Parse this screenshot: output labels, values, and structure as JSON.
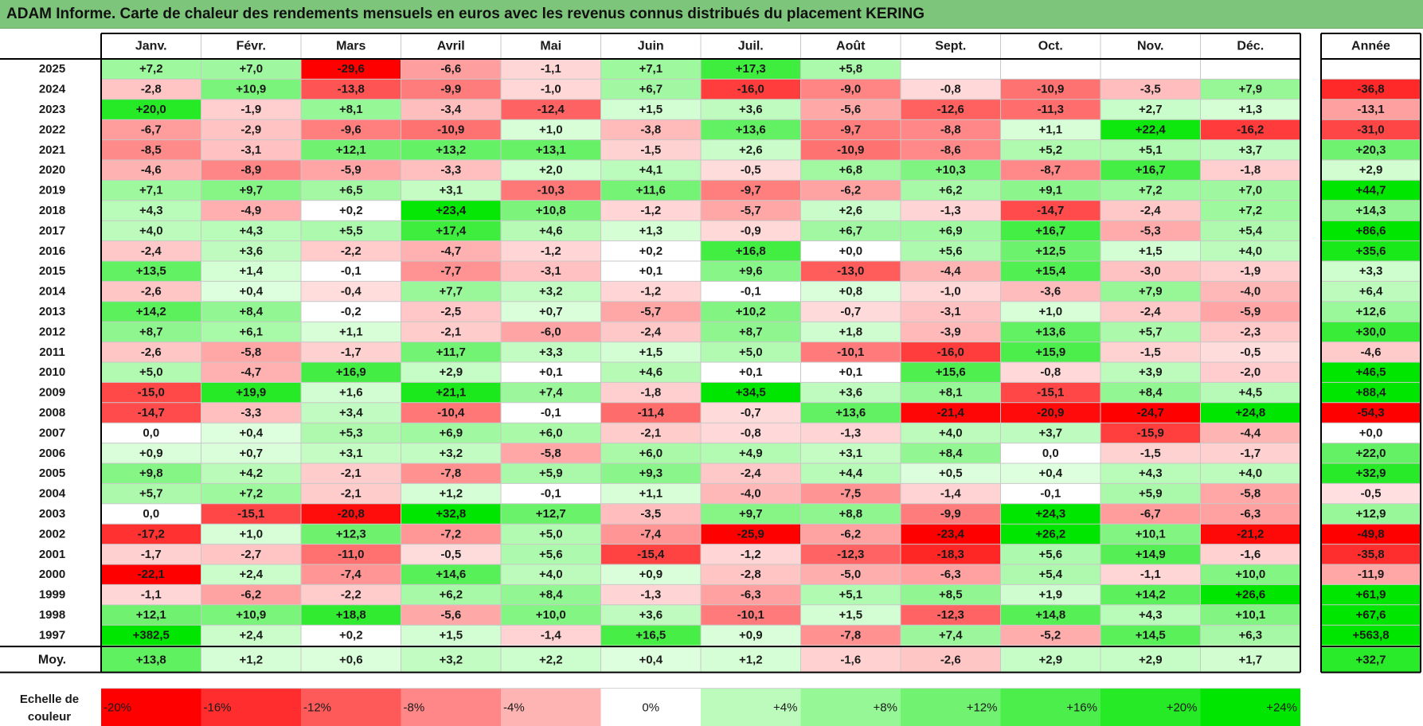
{
  "title": "ADAM Informe. Carte de chaleur des rendements mensuels en euros avec les revenus connus distribués du placement KERING",
  "chart_data": {
    "type": "heatmap",
    "columns": [
      "Janv.",
      "Févr.",
      "Mars",
      "Avril",
      "Mai",
      "Juin",
      "Juil.",
      "Août",
      "Sept.",
      "Oct.",
      "Nov.",
      "Déc."
    ],
    "year_header": "Année",
    "rows": [
      {
        "year": "2025",
        "values": [
          "+7,2",
          "+7,0",
          "-29,6",
          "-6,6",
          "-1,1",
          "+7,1",
          "+17,3",
          "+5,8",
          null,
          null,
          null,
          null
        ],
        "annual": null
      },
      {
        "year": "2024",
        "values": [
          "-2,8",
          "+10,9",
          "-13,8",
          "-9,9",
          "-1,0",
          "+6,7",
          "-16,0",
          "-9,0",
          "-0,8",
          "-10,9",
          "-3,5",
          "+7,9"
        ],
        "annual": "-36,8"
      },
      {
        "year": "2023",
        "values": [
          "+20,0",
          "-1,9",
          "+8,1",
          "-3,4",
          "-12,4",
          "+1,5",
          "+3,6",
          "-5,6",
          "-12,6",
          "-11,3",
          "+2,7",
          "+1,3"
        ],
        "annual": "-13,1"
      },
      {
        "year": "2022",
        "values": [
          "-6,7",
          "-2,9",
          "-9,6",
          "-10,9",
          "+1,0",
          "-3,8",
          "+13,6",
          "-9,7",
          "-8,8",
          "+1,1",
          "+22,4",
          "-16,2"
        ],
        "annual": "-31,0"
      },
      {
        "year": "2021",
        "values": [
          "-8,5",
          "-3,1",
          "+12,1",
          "+13,2",
          "+13,1",
          "-1,5",
          "+2,6",
          "-10,9",
          "-8,6",
          "+5,2",
          "+5,1",
          "+3,7"
        ],
        "annual": "+20,3"
      },
      {
        "year": "2020",
        "values": [
          "-4,6",
          "-8,9",
          "-5,9",
          "-3,3",
          "+2,0",
          "+4,1",
          "-0,5",
          "+6,8",
          "+10,3",
          "-8,7",
          "+16,7",
          "-1,8"
        ],
        "annual": "+2,9"
      },
      {
        "year": "2019",
        "values": [
          "+7,1",
          "+9,7",
          "+6,5",
          "+3,1",
          "-10,3",
          "+11,6",
          "-9,7",
          "-6,2",
          "+6,2",
          "+9,1",
          "+7,2",
          "+7,0"
        ],
        "annual": "+44,7"
      },
      {
        "year": "2018",
        "values": [
          "+4,3",
          "-4,9",
          "+0,2",
          "+23,4",
          "+10,8",
          "-1,2",
          "-5,7",
          "+2,6",
          "-1,3",
          "-14,7",
          "-2,4",
          "+7,2"
        ],
        "annual": "+14,3"
      },
      {
        "year": "2017",
        "values": [
          "+4,0",
          "+4,3",
          "+5,5",
          "+17,4",
          "+4,6",
          "+1,3",
          "-0,9",
          "+6,7",
          "+6,9",
          "+16,7",
          "-5,3",
          "+5,4"
        ],
        "annual": "+86,6"
      },
      {
        "year": "2016",
        "values": [
          "-2,4",
          "+3,6",
          "-2,2",
          "-4,7",
          "-1,2",
          "+0,2",
          "+16,8",
          "+0,0",
          "+5,6",
          "+12,5",
          "+1,5",
          "+4,0"
        ],
        "annual": "+35,6"
      },
      {
        "year": "2015",
        "values": [
          "+13,5",
          "+1,4",
          "-0,1",
          "-7,7",
          "-3,1",
          "+0,1",
          "+9,6",
          "-13,0",
          "-4,4",
          "+15,4",
          "-3,0",
          "-1,9"
        ],
        "annual": "+3,3"
      },
      {
        "year": "2014",
        "values": [
          "-2,6",
          "+0,4",
          "-0,4",
          "+7,7",
          "+3,2",
          "-1,2",
          "-0,1",
          "+0,8",
          "-1,0",
          "-3,6",
          "+7,9",
          "-4,0"
        ],
        "annual": "+6,4"
      },
      {
        "year": "2013",
        "values": [
          "+14,2",
          "+8,4",
          "-0,2",
          "-2,5",
          "+0,7",
          "-5,7",
          "+10,2",
          "-0,7",
          "-3,1",
          "+1,0",
          "-2,4",
          "-5,9"
        ],
        "annual": "+12,6"
      },
      {
        "year": "2012",
        "values": [
          "+8,7",
          "+6,1",
          "+1,1",
          "-2,1",
          "-6,0",
          "-2,4",
          "+8,7",
          "+1,8",
          "-3,9",
          "+13,6",
          "+5,7",
          "-2,3"
        ],
        "annual": "+30,0"
      },
      {
        "year": "2011",
        "values": [
          "-2,6",
          "-5,8",
          "-1,7",
          "+11,7",
          "+3,3",
          "+1,5",
          "+5,0",
          "-10,1",
          "-16,0",
          "+15,9",
          "-1,5",
          "-0,5"
        ],
        "annual": "-4,6"
      },
      {
        "year": "2010",
        "values": [
          "+5,0",
          "-4,7",
          "+16,9",
          "+2,9",
          "+0,1",
          "+4,6",
          "+0,1",
          "+0,1",
          "+15,6",
          "-0,8",
          "+3,9",
          "-2,0"
        ],
        "annual": "+46,5"
      },
      {
        "year": "2009",
        "values": [
          "-15,0",
          "+19,9",
          "+1,6",
          "+21,1",
          "+7,4",
          "-1,8",
          "+34,5",
          "+3,6",
          "+8,1",
          "-15,1",
          "+8,4",
          "+4,5"
        ],
        "annual": "+88,4"
      },
      {
        "year": "2008",
        "values": [
          "-14,7",
          "-3,3",
          "+3,4",
          "-10,4",
          "-0,1",
          "-11,4",
          "-0,7",
          "+13,6",
          "-21,4",
          "-20,9",
          "-24,7",
          "+24,8"
        ],
        "annual": "-54,3"
      },
      {
        "year": "2007",
        "values": [
          "0,0",
          "+0,4",
          "+5,3",
          "+6,9",
          "+6,0",
          "-2,1",
          "-0,8",
          "-1,3",
          "+4,0",
          "+3,7",
          "-15,9",
          "-4,4"
        ],
        "annual": "+0,0"
      },
      {
        "year": "2006",
        "values": [
          "+0,9",
          "+0,7",
          "+3,1",
          "+3,2",
          "-5,8",
          "+6,0",
          "+4,9",
          "+3,1",
          "+8,4",
          "0,0",
          "-1,5",
          "-1,7"
        ],
        "annual": "+22,0"
      },
      {
        "year": "2005",
        "values": [
          "+9,8",
          "+4,2",
          "-2,1",
          "-7,8",
          "+5,9",
          "+9,3",
          "-2,4",
          "+4,4",
          "+0,5",
          "+0,4",
          "+4,3",
          "+4,0"
        ],
        "annual": "+32,9"
      },
      {
        "year": "2004",
        "values": [
          "+5,7",
          "+7,2",
          "-2,1",
          "+1,2",
          "-0,1",
          "+1,1",
          "-4,0",
          "-7,5",
          "-1,4",
          "-0,1",
          "+5,9",
          "-5,8"
        ],
        "annual": "-0,5"
      },
      {
        "year": "2003",
        "values": [
          "0,0",
          "-15,1",
          "-20,8",
          "+32,8",
          "+12,7",
          "-3,5",
          "+9,7",
          "+8,8",
          "-9,9",
          "+24,3",
          "-6,7",
          "-6,3"
        ],
        "annual": "+12,9"
      },
      {
        "year": "2002",
        "values": [
          "-17,2",
          "+1,0",
          "+12,3",
          "-7,2",
          "+5,0",
          "-7,4",
          "-25,9",
          "-6,2",
          "-23,4",
          "+26,2",
          "+10,1",
          "-21,2"
        ],
        "annual": "-49,8"
      },
      {
        "year": "2001",
        "values": [
          "-1,7",
          "-2,7",
          "-11,0",
          "-0,5",
          "+5,6",
          "-15,4",
          "-1,2",
          "-12,3",
          "-18,3",
          "+5,6",
          "+14,9",
          "-1,6"
        ],
        "annual": "-35,8"
      },
      {
        "year": "2000",
        "values": [
          "-22,1",
          "+2,4",
          "-7,4",
          "+14,6",
          "+4,0",
          "+0,9",
          "-2,8",
          "-5,0",
          "-6,3",
          "+5,4",
          "-1,1",
          "+10,0"
        ],
        "annual": "-11,9"
      },
      {
        "year": "1999",
        "values": [
          "-1,1",
          "-6,2",
          "-2,2",
          "+6,2",
          "+8,4",
          "-1,3",
          "-6,3",
          "+5,1",
          "+8,5",
          "+1,9",
          "+14,2",
          "+26,6"
        ],
        "annual": "+61,9"
      },
      {
        "year": "1998",
        "values": [
          "+12,1",
          "+10,9",
          "+18,8",
          "-5,6",
          "+10,0",
          "+3,6",
          "-10,1",
          "+1,5",
          "-12,3",
          "+14,8",
          "+4,3",
          "+10,1"
        ],
        "annual": "+67,6"
      },
      {
        "year": "1997",
        "values": [
          "+382,5",
          "+2,4",
          "+0,2",
          "+1,5",
          "-1,4",
          "+16,5",
          "+0,9",
          "-7,8",
          "+7,4",
          "-5,2",
          "+14,5",
          "+6,3"
        ],
        "annual": "+563,8"
      }
    ],
    "average": {
      "label": "Moy.",
      "values": [
        "+13,8",
        "+1,2",
        "+0,6",
        "+3,2",
        "+2,2",
        "+0,4",
        "+1,2",
        "-1,6",
        "-2,6",
        "+2,9",
        "+2,9",
        "+1,7"
      ],
      "annual": "+32,7"
    },
    "scale": {
      "label_line1": "Echelle de",
      "label_line2": "couleur",
      "stops": [
        "-20%",
        "-16%",
        "-12%",
        "-8%",
        "-4%",
        "0%",
        "+4%",
        "+8%",
        "+12%",
        "+16%",
        "+20%",
        "+24%"
      ],
      "stop_values": [
        -20,
        -16,
        -12,
        -8,
        -4,
        0,
        4,
        8,
        12,
        16,
        20,
        24
      ]
    },
    "colors": {
      "negative_max": "#ff0000",
      "neutral": "#ffffff",
      "positive_max": "#00e600",
      "title_bar": "#7dc57a"
    }
  }
}
